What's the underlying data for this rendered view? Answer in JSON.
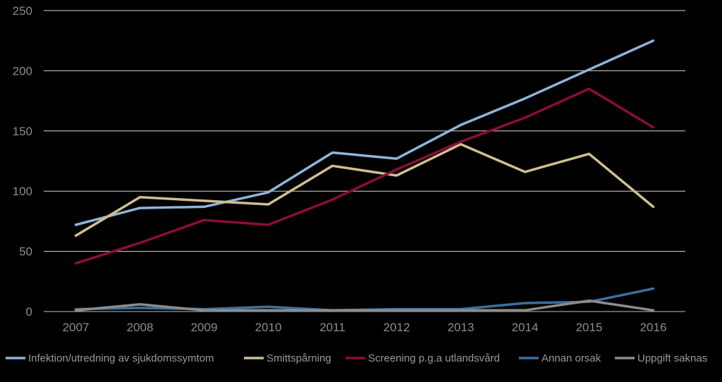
{
  "chart_data": {
    "type": "line",
    "title": "",
    "xlabel": "",
    "ylabel": "",
    "ylim": [
      0,
      250
    ],
    "yticks": [
      0,
      50,
      100,
      150,
      200,
      250
    ],
    "grid": "horizontal",
    "legend_position": "bottom",
    "categories": [
      "2007",
      "2008",
      "2009",
      "2010",
      "2011",
      "2012",
      "2013",
      "2014",
      "2015",
      "2016"
    ],
    "series": [
      {
        "name": "Infektion/utredning av sjukdomssymtom",
        "color": "#8fb4d9",
        "values": [
          72,
          86,
          87,
          99,
          132,
          127,
          155,
          177,
          201,
          225
        ]
      },
      {
        "name": "Smittspårning",
        "color": "#cfbf8f",
        "values": [
          63,
          95,
          92,
          89,
          121,
          113,
          139,
          116,
          131,
          87
        ]
      },
      {
        "name": "Screening p.g.a utlandsvård",
        "color": "#8b0d3a",
        "values": [
          40,
          57,
          76,
          72,
          93,
          118,
          141,
          161,
          185,
          153
        ]
      },
      {
        "name": "Annan orsak",
        "color": "#3b6fa0",
        "values": [
          2,
          3,
          2,
          4,
          1,
          2,
          2,
          7,
          8,
          19
        ]
      },
      {
        "name": "Uppgift saknas",
        "color": "#8c8c8c",
        "values": [
          1,
          6,
          1,
          1,
          1,
          1,
          1,
          1,
          9,
          1
        ]
      }
    ]
  }
}
